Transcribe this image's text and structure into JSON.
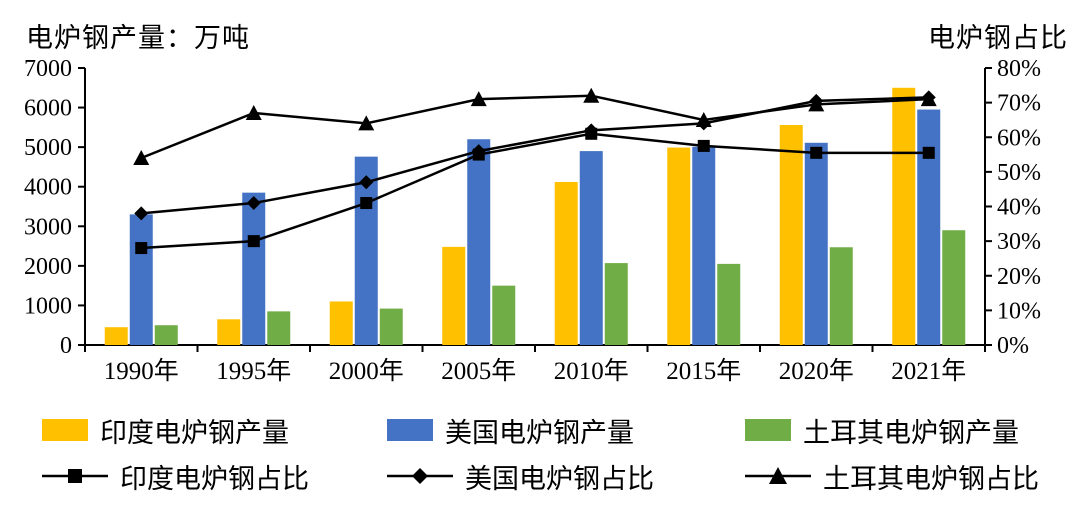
{
  "titles": {
    "left": "电炉钢产量：万吨",
    "right": "电炉钢占比"
  },
  "chart_data": {
    "type": "bar",
    "subtype": "grouped-bars-with-percentage-lines",
    "categories": [
      "1990年",
      "1995年",
      "2000年",
      "2005年",
      "2010年",
      "2015年",
      "2020年",
      "2021年"
    ],
    "left_axis": {
      "title": "电炉钢产量：万吨",
      "min": 0,
      "max": 7000,
      "step": 1000,
      "tick_labels": [
        "0",
        "1000",
        "2000",
        "3000",
        "4000",
        "5000",
        "6000",
        "7000"
      ]
    },
    "right_axis": {
      "title": "电炉钢占比",
      "min": 0,
      "max": 80,
      "step": 10,
      "unit": "%",
      "tick_labels": [
        "0%",
        "10%",
        "20%",
        "30%",
        "40%",
        "50%",
        "60%",
        "70%",
        "80%"
      ]
    },
    "bar_series": [
      {
        "name": "印度电炉钢产量",
        "color": "#FFC000",
        "axis": "left",
        "values": [
          450,
          650,
          1100,
          2480,
          4120,
          4990,
          5560,
          6500
        ]
      },
      {
        "name": "美国电炉钢产量",
        "color": "#4472C4",
        "axis": "left",
        "values": [
          3300,
          3850,
          4760,
          5200,
          4900,
          5010,
          5110,
          5950
        ]
      },
      {
        "name": "土耳其电炉钢产量",
        "color": "#70AD47",
        "axis": "left",
        "values": [
          500,
          850,
          920,
          1500,
          2070,
          2050,
          2470,
          2900
        ]
      }
    ],
    "line_series": [
      {
        "name": "印度电炉钢占比",
        "marker": "square",
        "color": "#000000",
        "axis": "right",
        "values": [
          28,
          30,
          41,
          55,
          61,
          57.5,
          55.5,
          55.5
        ]
      },
      {
        "name": "美国电炉钢占比",
        "marker": "diamond",
        "color": "#000000",
        "axis": "right",
        "values": [
          38,
          41,
          47,
          56,
          62,
          64,
          70.5,
          71.5
        ]
      },
      {
        "name": "土耳其电炉钢占比",
        "marker": "triangle",
        "color": "#000000",
        "axis": "right",
        "values": [
          54,
          67,
          64,
          71,
          72,
          65,
          69.5,
          71
        ]
      }
    ],
    "legend_position": "bottom",
    "grid": false
  }
}
